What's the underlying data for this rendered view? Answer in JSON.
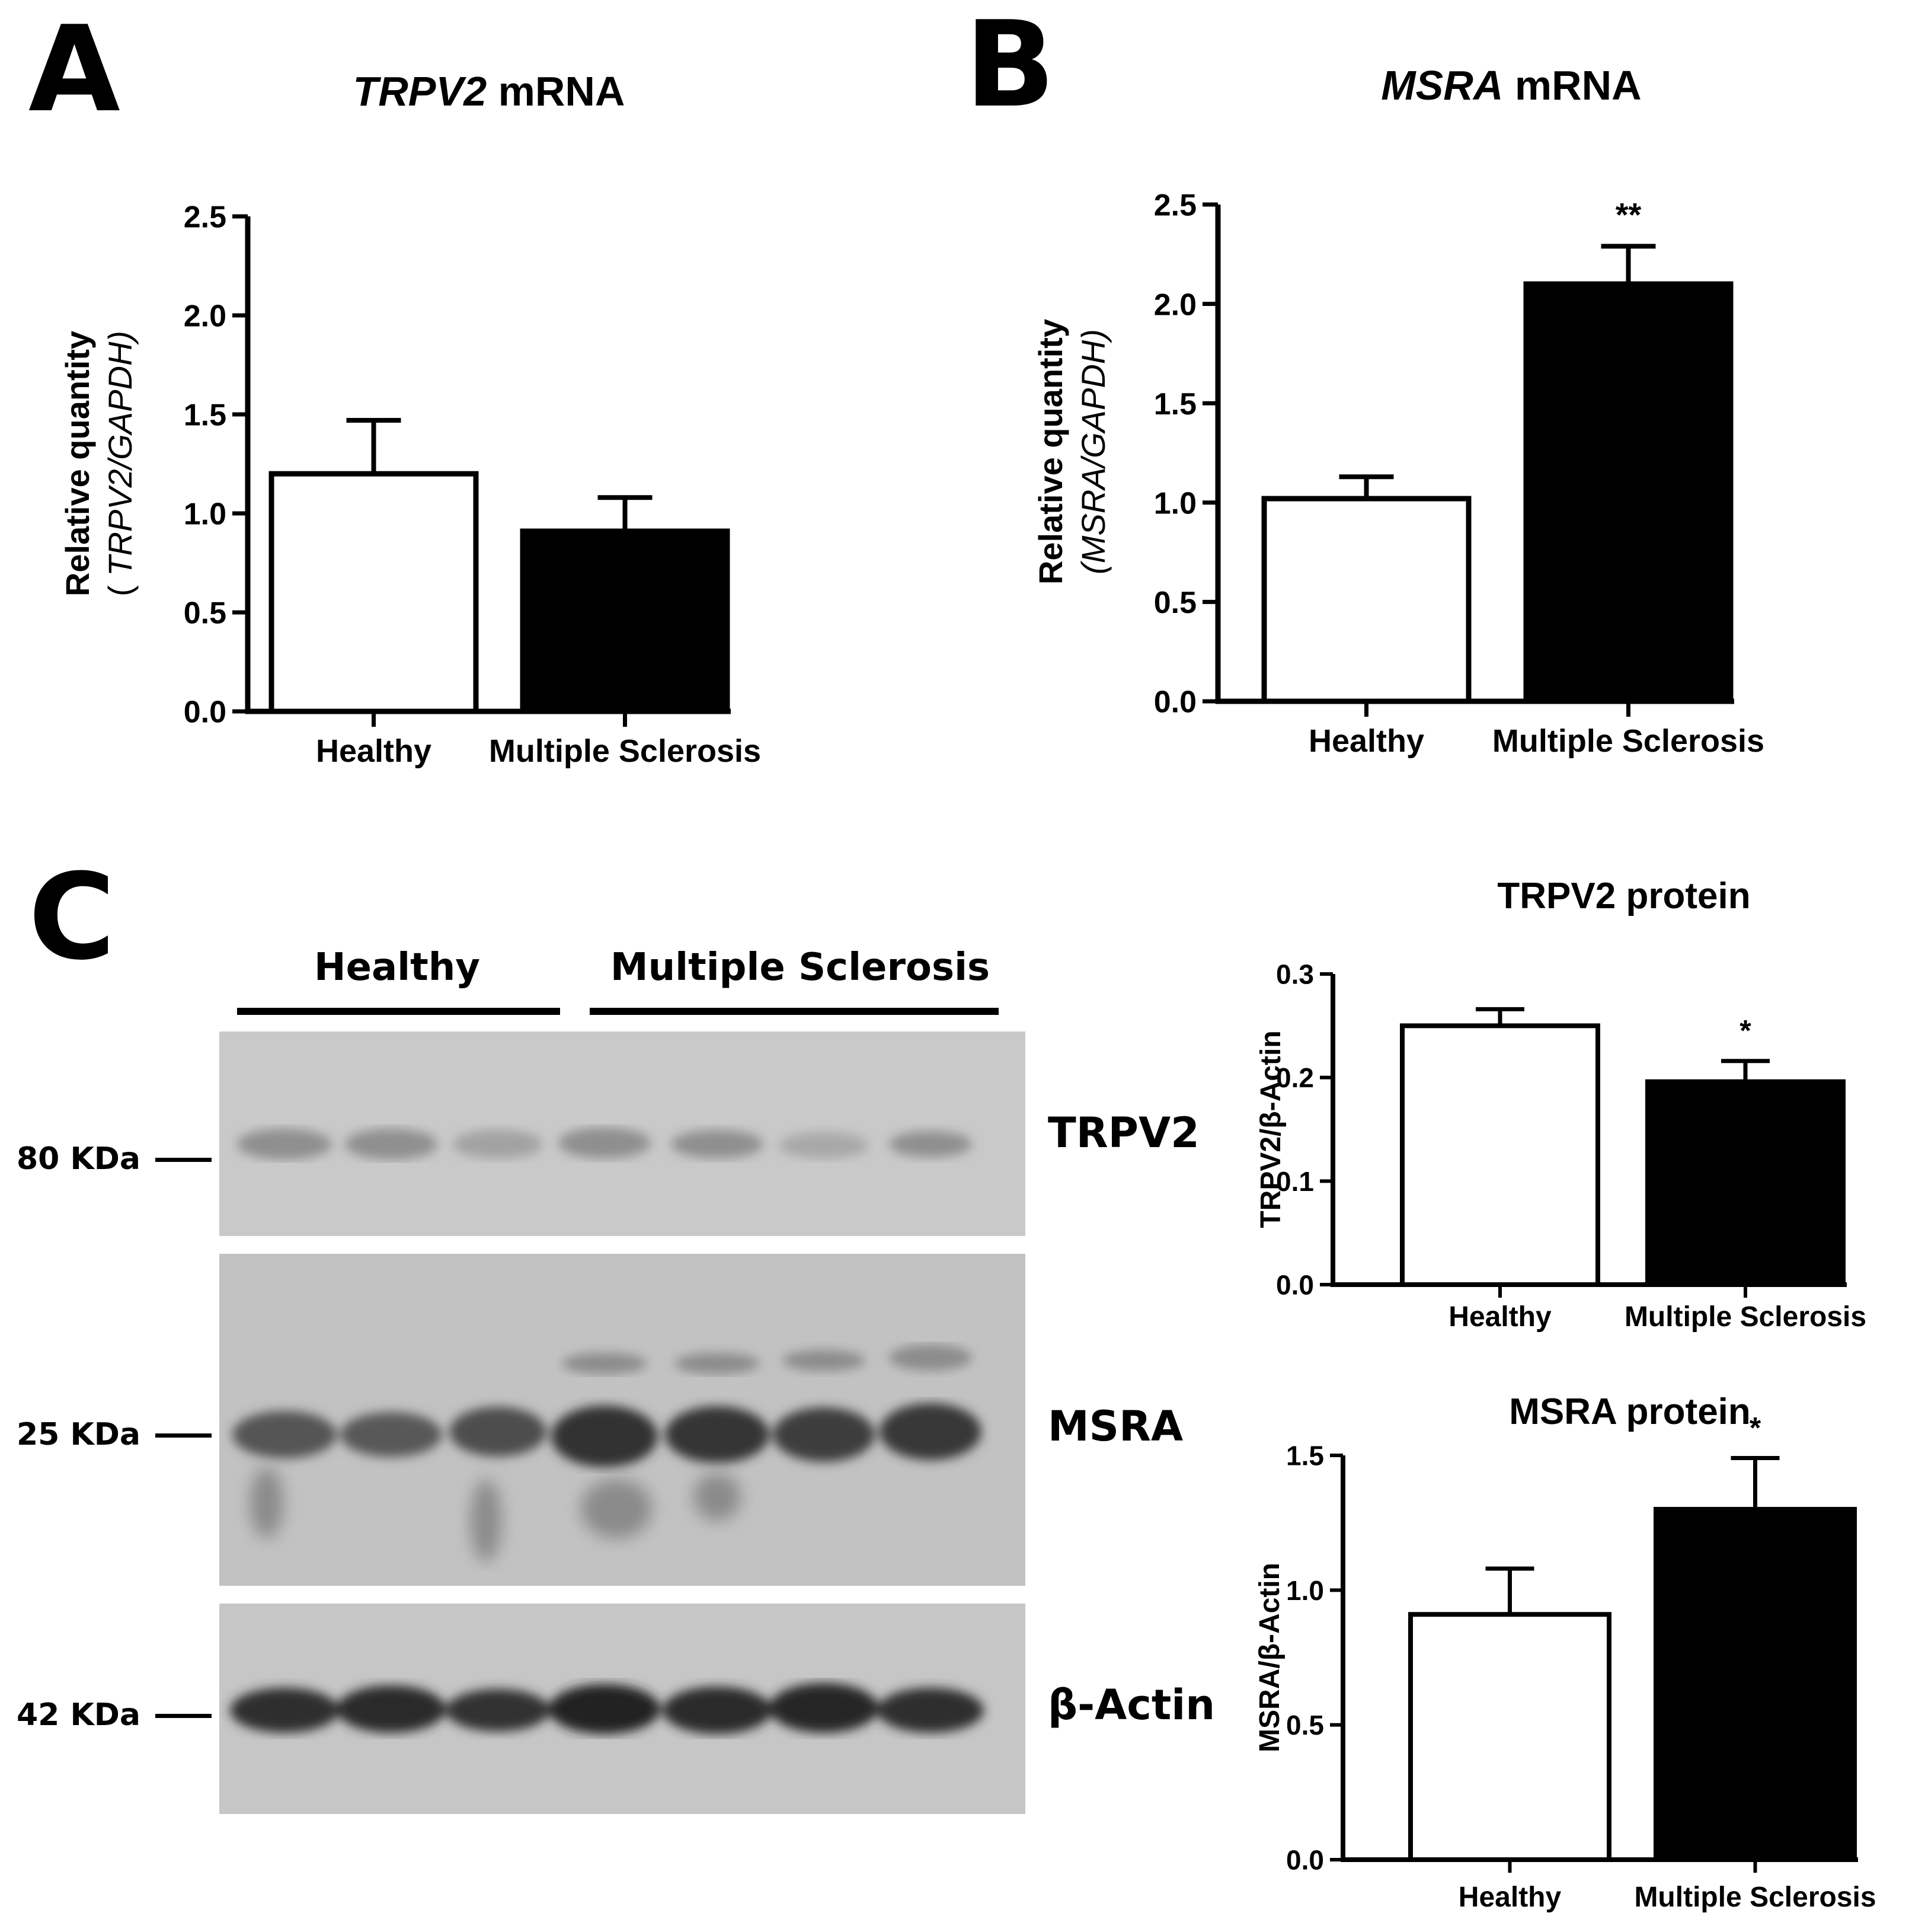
{
  "panels": {
    "a": "A",
    "b": "B",
    "c": "C"
  },
  "colors": {
    "healthy_fill": "#ffffff",
    "ms_fill": "#000000",
    "stroke": "#000000"
  },
  "blot": {
    "groups": [
      {
        "label": "Healthy",
        "lanes": 3
      },
      {
        "label": "Multiple Sclerosis",
        "lanes": 4
      }
    ],
    "rows": [
      {
        "protein": "TRPV2",
        "marker": "80 KDa"
      },
      {
        "protein": "MSRA",
        "marker": "25 KDa"
      },
      {
        "protein": "β-Actin",
        "marker": "42 KDa"
      }
    ]
  },
  "chart_data": [
    {
      "type": "bar",
      "title_italic": "TRPV2",
      "title_rest": " mRNA",
      "ylabel_line1": "Relative quantity",
      "ylabel_line2_pre": "( ",
      "ylabel_line2_italic": "TRPV2/GAPDH)",
      "categories": [
        "Healthy",
        "Multiple Sclerosis"
      ],
      "values": [
        1.2,
        0.91
      ],
      "errors": [
        0.27,
        0.17
      ],
      "significance": [
        "",
        ""
      ],
      "ylim": [
        0,
        2.5
      ],
      "yticks": [
        "0.0",
        "0.5",
        "1.0",
        "1.5",
        "2.0",
        "2.5"
      ],
      "tick_values": [
        0,
        0.5,
        1.0,
        1.5,
        2.0,
        2.5
      ]
    },
    {
      "type": "bar",
      "title_italic": "MSRA",
      "title_rest": " mRNA",
      "ylabel_line1": "Relative quantity",
      "ylabel_line2_pre": "",
      "ylabel_line2_italic": "(MSRA/GAPDH)",
      "categories": [
        "Healthy",
        "Multiple Sclerosis"
      ],
      "values": [
        1.02,
        2.1
      ],
      "errors": [
        0.11,
        0.19
      ],
      "significance": [
        "",
        "**"
      ],
      "ylim": [
        0,
        2.5
      ],
      "yticks": [
        "0.0",
        "0.5",
        "1.0",
        "1.5",
        "2.0",
        "2.5"
      ],
      "tick_values": [
        0,
        0.5,
        1.0,
        1.5,
        2.0,
        2.5
      ]
    },
    {
      "type": "bar",
      "title": "TRPV2 protein",
      "ylabel": "TRPV2/β-Actin",
      "categories": [
        "Healthy",
        "Multiple Sclerosis"
      ],
      "values": [
        0.25,
        0.196
      ],
      "errors": [
        0.016,
        0.02
      ],
      "significance": [
        "",
        "*"
      ],
      "ylim": [
        0,
        0.3
      ],
      "yticks": [
        "0.0",
        "0.1",
        "0.2",
        "0.3"
      ],
      "tick_values": [
        0,
        0.1,
        0.2,
        0.3
      ]
    },
    {
      "type": "bar",
      "title": "MSRA protein",
      "ylabel": "MSRA/β-Actin",
      "categories": [
        "Healthy",
        "Multiple Sclerosis"
      ],
      "values": [
        0.91,
        1.3
      ],
      "errors": [
        0.17,
        0.19
      ],
      "significance": [
        "",
        "*"
      ],
      "ylim": [
        0,
        1.5
      ],
      "yticks": [
        "0.0",
        "0.5",
        "1.0",
        "1.5"
      ],
      "tick_values": [
        0,
        0.5,
        1.0,
        1.5
      ]
    }
  ]
}
